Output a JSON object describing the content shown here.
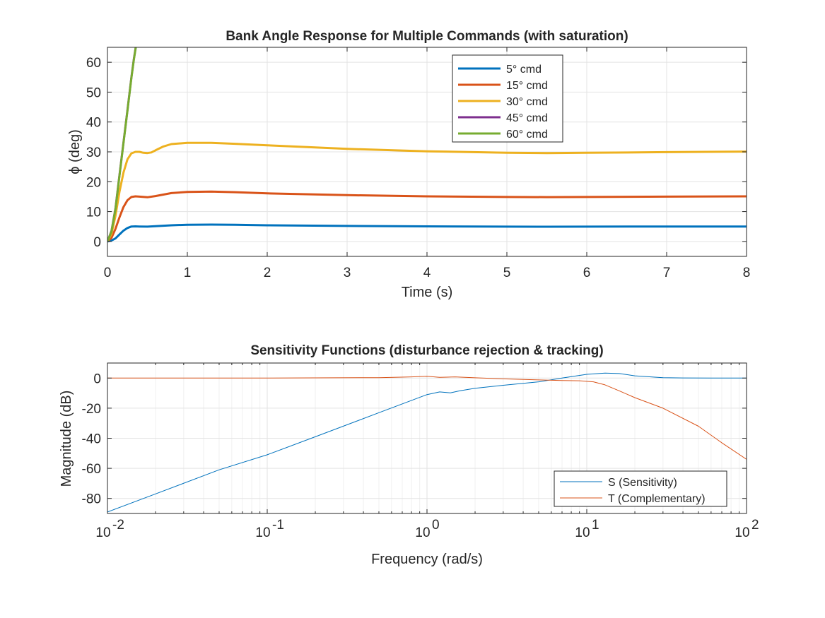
{
  "chart_data": [
    {
      "type": "line",
      "title": "Bank Angle Response for Multiple Commands (with saturation)",
      "xlabel": "Time (s)",
      "ylabel": "ϕ (deg)",
      "xlim": [
        0,
        8
      ],
      "ylim": [
        -5,
        65
      ],
      "xticks": [
        0,
        1,
        2,
        3,
        4,
        5,
        6,
        7,
        8
      ],
      "yticks": [
        0,
        10,
        20,
        30,
        40,
        50,
        60
      ],
      "grid": true,
      "legend_position": "top-center",
      "series": [
        {
          "name": "5° cmd",
          "color": "#0072BD",
          "x": [
            0,
            0.05,
            0.1,
            0.15,
            0.2,
            0.25,
            0.3,
            0.35,
            0.4,
            0.5,
            0.6,
            0.8,
            1.0,
            1.3,
            1.6,
            2.0,
            3.0,
            4.0,
            5.0,
            5.5,
            6.0,
            7.0,
            8.0
          ],
          "y": [
            0,
            0.3,
            1.0,
            2.3,
            3.6,
            4.5,
            5.0,
            5.05,
            5.0,
            4.95,
            5.1,
            5.4,
            5.6,
            5.65,
            5.6,
            5.4,
            5.2,
            5.05,
            4.95,
            4.93,
            4.95,
            5.0,
            5.0
          ]
        },
        {
          "name": "15° cmd",
          "color": "#D95319",
          "x": [
            0,
            0.05,
            0.1,
            0.15,
            0.2,
            0.25,
            0.3,
            0.35,
            0.4,
            0.5,
            0.6,
            0.8,
            1.0,
            1.3,
            1.6,
            2.0,
            3.0,
            4.0,
            5.0,
            5.5,
            6.0,
            7.0,
            8.0
          ],
          "y": [
            0,
            1.2,
            4.2,
            8.0,
            11.5,
            13.8,
            14.9,
            15.1,
            15.0,
            14.8,
            15.2,
            16.2,
            16.6,
            16.7,
            16.5,
            16.1,
            15.5,
            15.1,
            14.9,
            14.85,
            14.9,
            15.0,
            15.1
          ]
        },
        {
          "name": "30° cmd",
          "color": "#EDB120",
          "x": [
            0,
            0.05,
            0.1,
            0.15,
            0.2,
            0.25,
            0.3,
            0.35,
            0.4,
            0.45,
            0.5,
            0.55,
            0.6,
            0.7,
            0.8,
            1.0,
            1.3,
            1.6,
            2.0,
            3.0,
            4.0,
            5.0,
            5.5,
            6.0,
            7.0,
            8.0
          ],
          "y": [
            0,
            2.5,
            8.5,
            16.5,
            23.0,
            27.5,
            29.5,
            30.0,
            30.0,
            29.7,
            29.6,
            29.8,
            30.5,
            31.8,
            32.6,
            33.0,
            33.0,
            32.7,
            32.2,
            31.0,
            30.2,
            29.7,
            29.6,
            29.7,
            29.9,
            30.1
          ]
        },
        {
          "name": "45° cmd",
          "color": "#7E2F8E",
          "x": [
            0,
            0.05,
            0.1,
            0.15,
            0.2,
            0.25,
            0.3,
            0.33,
            0.36,
            0.4
          ],
          "y": [
            0,
            3.5,
            11.0,
            22.0,
            33.0,
            44.0,
            55.0,
            61.0,
            66.0,
            72.0
          ]
        },
        {
          "name": "60° cmd",
          "color": "#77AC30",
          "x": [
            0,
            0.05,
            0.1,
            0.15,
            0.2,
            0.25,
            0.3,
            0.33,
            0.36,
            0.4
          ],
          "y": [
            0,
            3.4,
            10.8,
            21.8,
            32.8,
            43.8,
            54.8,
            60.8,
            66.0,
            72.0
          ]
        }
      ]
    },
    {
      "type": "line",
      "title": "Sensitivity Functions (disturbance rejection & tracking)",
      "xlabel": "Frequency (rad/s)",
      "ylabel": "Magnitude (dB)",
      "xscale": "log",
      "xlim": [
        0.01,
        100
      ],
      "ylim": [
        -90,
        10
      ],
      "xticks": [
        0.01,
        0.1,
        1,
        10,
        100
      ],
      "xtick_base": "10",
      "xtick_exponents": [
        "-2",
        "-1",
        "0",
        "1",
        "2"
      ],
      "yticks": [
        0,
        -20,
        -40,
        -60,
        -80
      ],
      "grid": true,
      "legend_position": "bottom-right",
      "series": [
        {
          "name": "S (Sensitivity)",
          "color": "#0072BD",
          "x": [
            0.01,
            0.02,
            0.05,
            0.1,
            0.2,
            0.5,
            1.0,
            1.2,
            1.4,
            1.6,
            2.0,
            3.0,
            5.0,
            7.0,
            10.0,
            13.0,
            16.0,
            20.0,
            30.0,
            40.0,
            60.0,
            100.0
          ],
          "y": [
            -89,
            -77,
            -61,
            -51,
            -39,
            -23,
            -11,
            -9.2,
            -9.8,
            -8.5,
            -6.8,
            -4.8,
            -2.5,
            0.0,
            2.5,
            3.3,
            3.0,
            1.5,
            0.3,
            0.1,
            0.0,
            0.0
          ]
        },
        {
          "name": "T (Complementary)",
          "color": "#D95319",
          "x": [
            0.01,
            0.1,
            0.5,
            0.8,
            1.0,
            1.2,
            1.5,
            2.0,
            3.0,
            5.0,
            7.0,
            9.0,
            11.0,
            13.0,
            16.0,
            20.0,
            30.0,
            50.0,
            70.0,
            100.0
          ],
          "y": [
            0,
            0,
            0.3,
            0.8,
            1.2,
            0.5,
            0.8,
            0.2,
            -0.5,
            -1.2,
            -1.6,
            -1.8,
            -2.5,
            -4.5,
            -8.5,
            -13.0,
            -20.0,
            -32.0,
            -43.0,
            -54.0
          ]
        }
      ]
    }
  ]
}
